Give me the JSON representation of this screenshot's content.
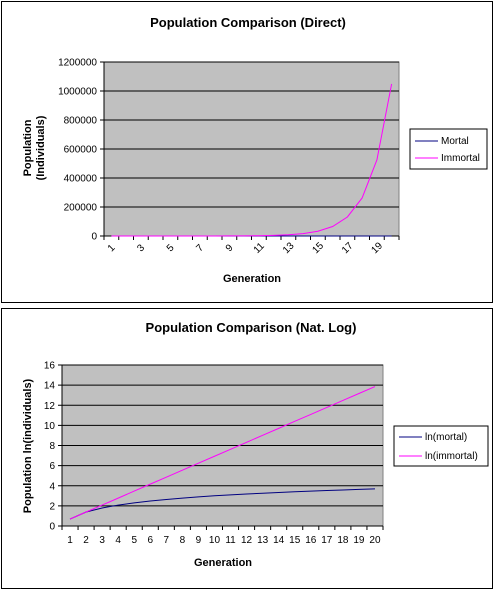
{
  "chart_data": [
    {
      "type": "line",
      "title": "Population Comparison (Direct)",
      "xlabel": "Generation",
      "ylabel": [
        "Population",
        "(Individuals)"
      ],
      "x_tick_labels": [
        "1",
        "3",
        "5",
        "7",
        "9",
        "11",
        "13",
        "15",
        "17",
        "19"
      ],
      "x": [
        1,
        2,
        3,
        4,
        5,
        6,
        7,
        8,
        9,
        10,
        11,
        12,
        13,
        14,
        15,
        16,
        17,
        18,
        19,
        20
      ],
      "y_ticks": [
        0,
        200000,
        400000,
        600000,
        800000,
        1000000,
        1200000
      ],
      "ylim": [
        0,
        1200000
      ],
      "grid": "horizontal",
      "legend_position": "right",
      "series": [
        {
          "name": "Mortal",
          "color": "#000080",
          "values": [
            2,
            4,
            6,
            8,
            10,
            12,
            14,
            16,
            18,
            20,
            22,
            24,
            26,
            28,
            30,
            32,
            34,
            36,
            38,
            40
          ]
        },
        {
          "name": "Immortal",
          "color": "#ff00ff",
          "values": [
            2,
            4,
            8,
            16,
            32,
            64,
            128,
            256,
            512,
            1024,
            2048,
            4096,
            8192,
            16384,
            32768,
            65536,
            131072,
            262144,
            524288,
            1048576
          ]
        }
      ]
    },
    {
      "type": "line",
      "title": "Population Comparison (Nat. Log)",
      "xlabel": "Generation",
      "ylabel": "Population ln(individuals)",
      "x_tick_labels": [
        "1",
        "2",
        "3",
        "4",
        "5",
        "6",
        "7",
        "8",
        "9",
        "10",
        "11",
        "12",
        "13",
        "14",
        "15",
        "16",
        "17",
        "18",
        "19",
        "20"
      ],
      "x": [
        1,
        2,
        3,
        4,
        5,
        6,
        7,
        8,
        9,
        10,
        11,
        12,
        13,
        14,
        15,
        16,
        17,
        18,
        19,
        20
      ],
      "y_ticks": [
        0,
        2,
        4,
        6,
        8,
        10,
        12,
        14,
        16
      ],
      "ylim": [
        0,
        16
      ],
      "grid": "horizontal",
      "legend_position": "right",
      "series": [
        {
          "name": "ln(mortal)",
          "color": "#000080",
          "values": [
            0.69,
            1.39,
            1.79,
            2.08,
            2.3,
            2.48,
            2.64,
            2.77,
            2.89,
            3.0,
            3.09,
            3.18,
            3.26,
            3.33,
            3.4,
            3.47,
            3.53,
            3.58,
            3.64,
            3.69
          ]
        },
        {
          "name": "ln(immortal)",
          "color": "#ff00ff",
          "values": [
            0.69,
            1.39,
            2.08,
            2.77,
            3.47,
            4.16,
            4.85,
            5.55,
            6.24,
            6.93,
            7.62,
            8.32,
            9.01,
            9.7,
            10.4,
            11.09,
            11.78,
            12.48,
            13.17,
            13.86
          ]
        }
      ]
    }
  ]
}
